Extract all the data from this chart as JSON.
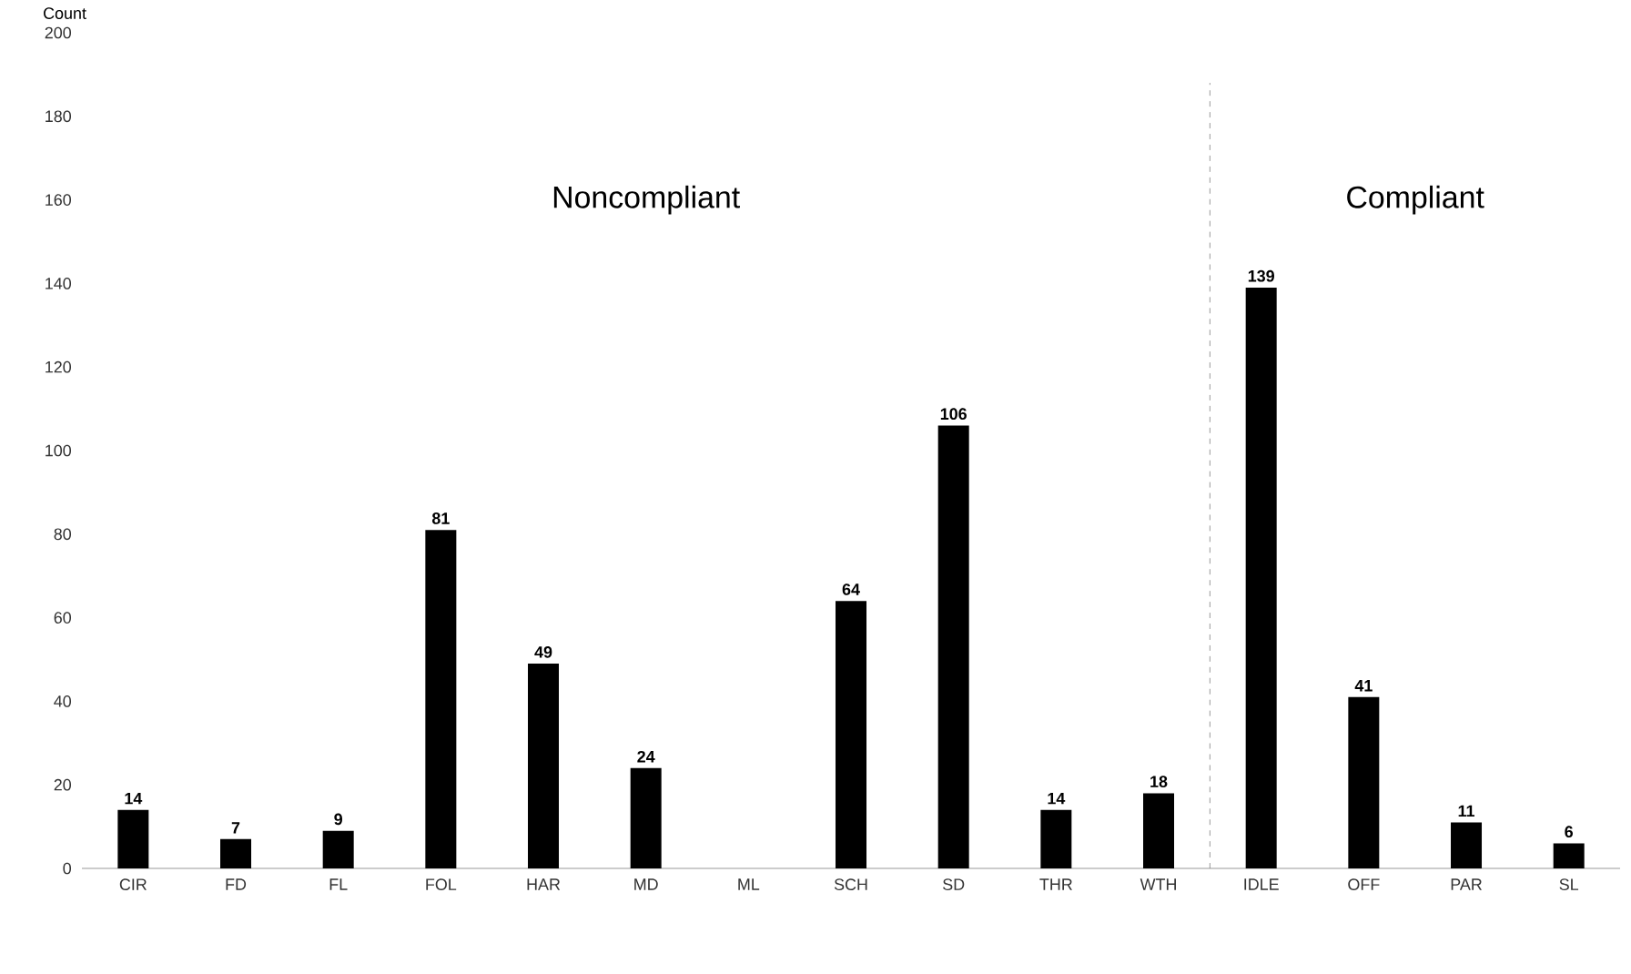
{
  "chart_data": {
    "type": "bar",
    "ylabel": "Count",
    "categories": [
      "CIR",
      "FD",
      "FL",
      "FOL",
      "HAR",
      "MD",
      "ML",
      "SCH",
      "SD",
      "THR",
      "WTH",
      "IDLE",
      "OFF",
      "PAR",
      "SL"
    ],
    "values": [
      14,
      7,
      9,
      81,
      49,
      24,
      null,
      64,
      106,
      14,
      18,
      139,
      41,
      11,
      6
    ],
    "color": "#000000",
    "ylim": [
      0,
      200
    ],
    "yticks": [
      0,
      20,
      40,
      60,
      80,
      100,
      120,
      140,
      160,
      180,
      200
    ],
    "data_labels": true,
    "grid": false,
    "annotations": [
      "Noncompliant",
      "Compliant"
    ]
  }
}
